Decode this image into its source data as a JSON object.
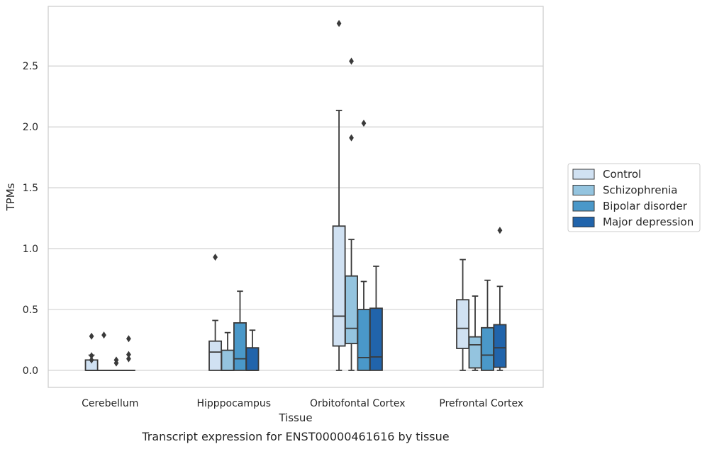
{
  "chart_data": {
    "type": "box",
    "title": "",
    "caption": "Transcript expression for ENST00000461616 by tissue",
    "xlabel": "Tissue",
    "ylabel": "TPMs",
    "ylim": [
      -0.14,
      2.99
    ],
    "yticks": [
      0.0,
      0.5,
      1.0,
      1.5,
      2.0,
      2.5
    ],
    "ytick_labels": [
      "0.0",
      "0.5",
      "1.0",
      "1.5",
      "2.0",
      "2.5"
    ],
    "grid": "horizontal",
    "legend_position": "right",
    "categories": [
      "Cerebellum",
      "Hipppocampus",
      "Orbitofontal Cortex",
      "Prefrontal Cortex"
    ],
    "series": [
      {
        "name": "Control",
        "color": "#d0e1f2",
        "boxes": [
          {
            "q1": 0.0,
            "median": 0.0,
            "q3": 0.085,
            "whislo": 0.0,
            "whishi": 0.125,
            "fliers": [
              0.28,
              0.12,
              0.085
            ]
          },
          {
            "q1": 0.0,
            "median": 0.15,
            "q3": 0.24,
            "whislo": 0.0,
            "whishi": 0.41,
            "fliers": [
              0.93
            ]
          },
          {
            "q1": 0.2,
            "median": 0.445,
            "q3": 1.185,
            "whislo": 0.0,
            "whishi": 2.135,
            "fliers": [
              2.85
            ]
          },
          {
            "q1": 0.18,
            "median": 0.345,
            "q3": 0.58,
            "whislo": 0.0,
            "whishi": 0.91,
            "fliers": []
          }
        ]
      },
      {
        "name": "Schizophrenia",
        "color": "#94c4df",
        "boxes": [
          {
            "q1": 0.0,
            "median": 0.0,
            "q3": 0.0,
            "whislo": 0.0,
            "whishi": 0.0,
            "fliers": [
              0.29
            ]
          },
          {
            "q1": 0.0,
            "median": 0.0,
            "q3": 0.165,
            "whislo": 0.0,
            "whishi": 0.31,
            "fliers": []
          },
          {
            "q1": 0.22,
            "median": 0.345,
            "q3": 0.775,
            "whislo": 0.0,
            "whishi": 1.075,
            "fliers": [
              2.54,
              1.91
            ]
          },
          {
            "q1": 0.02,
            "median": 0.21,
            "q3": 0.275,
            "whislo": 0.0,
            "whishi": 0.61,
            "fliers": []
          }
        ]
      },
      {
        "name": "Bipolar disorder",
        "color": "#4a98c9",
        "boxes": [
          {
            "q1": 0.0,
            "median": 0.0,
            "q3": 0.0,
            "whislo": 0.0,
            "whishi": 0.0,
            "fliers": [
              0.085,
              0.06
            ]
          },
          {
            "q1": 0.0,
            "median": 0.095,
            "q3": 0.39,
            "whislo": 0.0,
            "whishi": 0.65,
            "fliers": []
          },
          {
            "q1": 0.0,
            "median": 0.105,
            "q3": 0.5,
            "whislo": 0.0,
            "whishi": 0.73,
            "fliers": [
              2.03
            ]
          },
          {
            "q1": 0.0,
            "median": 0.125,
            "q3": 0.35,
            "whislo": 0.0,
            "whishi": 0.74,
            "fliers": []
          }
        ]
      },
      {
        "name": "Major depression",
        "color": "#2164ab",
        "boxes": [
          {
            "q1": 0.0,
            "median": 0.0,
            "q3": 0.0,
            "whislo": 0.0,
            "whishi": 0.0,
            "fliers": [
              0.26,
              0.13,
              0.095
            ]
          },
          {
            "q1": 0.0,
            "median": 0.0,
            "q3": 0.185,
            "whislo": 0.0,
            "whishi": 0.33,
            "fliers": []
          },
          {
            "q1": 0.0,
            "median": 0.11,
            "q3": 0.51,
            "whislo": 0.0,
            "whishi": 0.855,
            "fliers": []
          },
          {
            "q1": 0.025,
            "median": 0.185,
            "q3": 0.375,
            "whislo": 0.0,
            "whishi": 0.69,
            "fliers": [
              1.15
            ]
          }
        ]
      }
    ]
  }
}
